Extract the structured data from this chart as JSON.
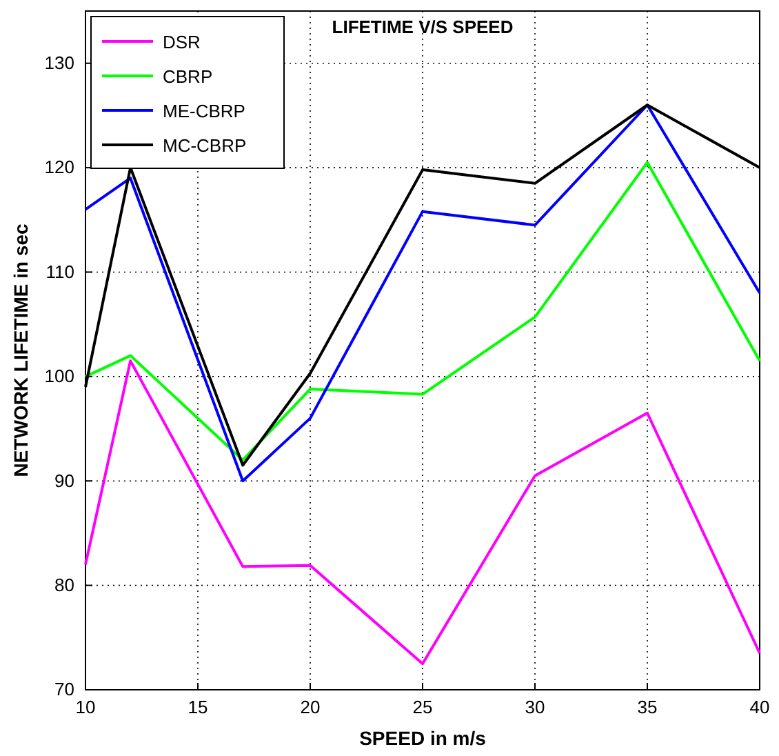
{
  "chart_data": {
    "type": "line",
    "title": "LIFETIME V/S SPEED",
    "xlabel": "SPEED in m/s",
    "ylabel": "NETWORK LIFETIME in sec",
    "x": [
      10,
      12,
      17,
      20,
      25,
      30,
      35,
      40
    ],
    "series": [
      {
        "name": "DSR",
        "color": "#ff00ff",
        "values": [
          82,
          101.5,
          81.8,
          81.9,
          72.5,
          90.5,
          96.5,
          73.5
        ]
      },
      {
        "name": "CBRP",
        "color": "#00ff00",
        "values": [
          100,
          102,
          92,
          98.8,
          98.3,
          105.7,
          120.5,
          101.5
        ]
      },
      {
        "name": "ME-CBRP",
        "color": "#0000ff",
        "values": [
          116,
          119,
          90,
          96,
          115.8,
          114.5,
          126,
          108
        ]
      },
      {
        "name": "MC-CBRP",
        "color": "#000000",
        "values": [
          99,
          120,
          91.5,
          100.3,
          119.8,
          118.5,
          126,
          120
        ]
      }
    ],
    "xlim": [
      10,
      40
    ],
    "xticks": [
      10,
      15,
      20,
      25,
      30,
      35,
      40
    ],
    "ylim": [
      70,
      135
    ],
    "yticks": [
      70,
      80,
      90,
      100,
      110,
      120,
      130
    ],
    "grid": true,
    "legend": "top left",
    "marker": "none",
    "line_style": "solid"
  }
}
